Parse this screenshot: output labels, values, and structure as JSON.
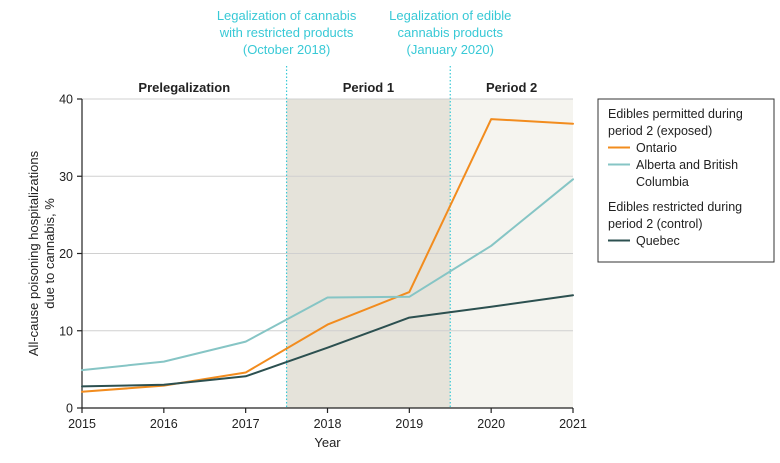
{
  "chart_data": {
    "type": "line",
    "x": [
      2015,
      2016,
      2017,
      2018,
      2019,
      2020,
      2021
    ],
    "xlabel": "Year",
    "ylabel_lines": [
      "All-cause poisoning hospitalizations",
      "due to cannabis, %"
    ],
    "ylim": [
      0,
      40
    ],
    "yticks": [
      0,
      10,
      20,
      30,
      40
    ],
    "series": [
      {
        "name": "Ontario",
        "color": "#f28c1e",
        "x": [
          2015,
          2016,
          2017,
          2018,
          2019,
          2020,
          2021
        ],
        "values": [
          2.1,
          2.9,
          4.6,
          10.8,
          15.0,
          37.4,
          36.8
        ]
      },
      {
        "name": "Alberta and British Columbia",
        "color": "#86c5c5",
        "x": [
          2015,
          2016,
          2017,
          2018,
          2019,
          2020,
          2021
        ],
        "values": [
          4.9,
          6.0,
          8.6,
          14.3,
          14.4,
          21.0,
          29.6
        ]
      },
      {
        "name": "Quebec",
        "color": "#2c5050",
        "x": [
          2015,
          2016,
          2017,
          2018,
          2019,
          2020,
          2021
        ],
        "values": [
          2.8,
          3.0,
          4.1,
          7.8,
          11.7,
          13.1,
          14.6
        ]
      }
    ],
    "periods": [
      {
        "label": "Prelegalization",
        "start": 2015,
        "end": 2017.5,
        "fill": "#ffffff"
      },
      {
        "label": "Period 1",
        "start": 2017.5,
        "end": 2019.5,
        "fill": "#e5e3da"
      },
      {
        "label": "Period 2",
        "start": 2019.5,
        "end": 2021,
        "fill": "#f5f4ef"
      }
    ],
    "annotations": [
      {
        "x": 2017.5,
        "lines": [
          "Legalization of cannabis",
          "with restricted products",
          "(October 2018)"
        ]
      },
      {
        "x": 2019.5,
        "lines": [
          "Legalization of edible",
          "cannabis products",
          "(January 2020)"
        ]
      }
    ],
    "legend": {
      "position": "right",
      "groups": [
        {
          "heading_lines": [
            "Edibles permitted during",
            "period 2 (exposed)"
          ],
          "items": [
            "Ontario",
            "Alberta and British Columbia"
          ]
        },
        {
          "heading_lines": [
            "Edibles restricted during",
            "period 2 (control)"
          ],
          "items": [
            "Quebec"
          ]
        }
      ],
      "item_label_lines": {
        "Ontario": [
          "Ontario"
        ],
        "Alberta and British Columbia": [
          "Alberta and British",
          "Columbia"
        ],
        "Quebec": [
          "Quebec"
        ]
      }
    },
    "annotation_color": "#38c9d6"
  }
}
